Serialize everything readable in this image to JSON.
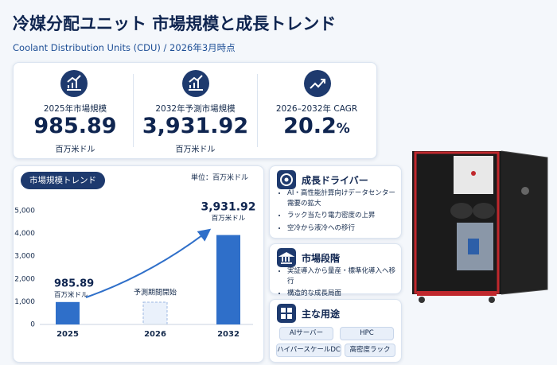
{
  "header": {
    "title": "冷媒分配ユニット 市場規模と成長トレンド",
    "subtitle": "Coolant Distribution Units (CDU) / 2026年3月時点"
  },
  "kpis": [
    {
      "label": "2025年市場規模",
      "value": "985.89",
      "unit": "百万米ドル"
    },
    {
      "label": "2032年予測市場規模",
      "value": "3,931.92",
      "unit": "百万米ドル"
    },
    {
      "label": "2026–2032年 CAGR",
      "value": "20.2",
      "unit": "%"
    }
  ],
  "chart_data": {
    "type": "bar",
    "title": "市場規模トレンド",
    "unit_note": "単位：百万米ドル",
    "categories": [
      "2025",
      "2026",
      "2032"
    ],
    "values": [
      985.89,
      null,
      3931.92
    ],
    "value_labels": [
      "985.89",
      null,
      "3,931.92"
    ],
    "value_unit": "百万米ドル",
    "annotation": "予測期間開始",
    "color": "#2f6fc9",
    "ylim": [
      0,
      5000
    ],
    "yticks": [
      0,
      {
        "value": 1000,
        "label": "1,000"
      },
      {
        "value": 2000,
        "label": "2,000"
      },
      {
        "value": 3000,
        "label": "3,000"
      },
      {
        "value": 4000,
        "label": "4,000"
      },
      {
        "value": 5000,
        "label": "5,000"
      }
    ],
    "grid": false
  },
  "panels": [
    {
      "title": "成長ドライバー",
      "items": [
        "AI・高性能計算向けデータセンター需要の拡大",
        "ラック当たり電力密度の上昇",
        "空冷から液冷への移行"
      ]
    },
    {
      "title": "市場段階",
      "items": [
        "実証導入から量産・標準化導入へ移行",
        "構造的な成長局面"
      ]
    },
    {
      "title": "主な用途",
      "tags": [
        "AIサーバー",
        "HPC",
        "ハイパースケールDC",
        "高密度ラック"
      ]
    }
  ]
}
